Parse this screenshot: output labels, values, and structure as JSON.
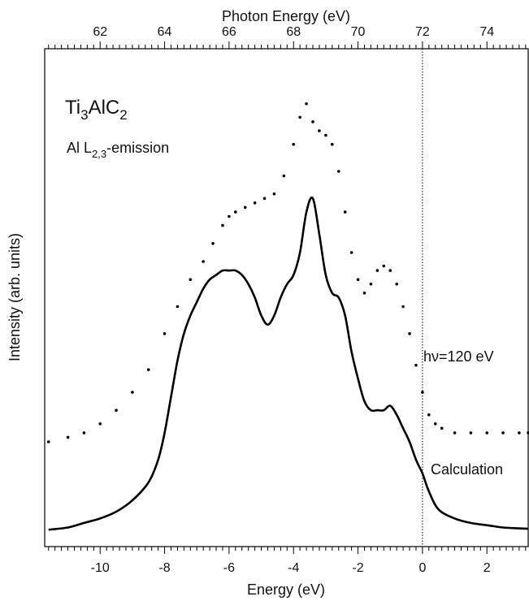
{
  "chart_data": {
    "type": "line",
    "top_axis": {
      "label": "Photon Energy (eV)",
      "range": [
        60.28,
        75.28
      ],
      "ticks": [
        62,
        64,
        66,
        68,
        70,
        72,
        74
      ],
      "tick_labels": [
        "62",
        "64",
        "66",
        "68",
        "70",
        "72",
        "74"
      ]
    },
    "bottom_axis": {
      "label": "Energy (eV)",
      "range": [
        -11.72,
        3.28
      ],
      "ticks": [
        -10,
        -8,
        -6,
        -4,
        -2,
        0,
        2
      ],
      "tick_labels": [
        "-10",
        "-8",
        "-6",
        "-4",
        "-2",
        "0",
        "2"
      ]
    },
    "y_axis": {
      "label": "Intensity (arb. units)",
      "range": [
        0,
        10
      ],
      "tick_labels_shown": false
    },
    "reference_line": {
      "x": 0,
      "style": "dotted"
    },
    "grid": false,
    "series": [
      {
        "name": "hν=120 eV",
        "style": "dots",
        "x": [
          -11.6,
          -11.0,
          -10.5,
          -10.0,
          -9.5,
          -9.0,
          -8.5,
          -8.0,
          -7.6,
          -7.2,
          -6.8,
          -6.5,
          -6.2,
          -6.0,
          -5.8,
          -5.5,
          -5.2,
          -4.9,
          -4.6,
          -4.3,
          -4.0,
          -3.8,
          -3.6,
          -3.4,
          -3.2,
          -3.0,
          -2.8,
          -2.6,
          -2.4,
          -2.2,
          -2.0,
          -1.8,
          -1.6,
          -1.4,
          -1.2,
          -1.0,
          -0.8,
          -0.6,
          -0.4,
          -0.2,
          0.0,
          0.2,
          0.4,
          0.6,
          1.0,
          1.5,
          2.0,
          2.5,
          3.0,
          3.28
        ],
        "y": [
          2.0,
          2.1,
          2.2,
          2.4,
          2.7,
          3.1,
          3.6,
          4.4,
          5.0,
          5.6,
          6.0,
          6.4,
          6.8,
          7.0,
          7.1,
          7.2,
          7.3,
          7.4,
          7.5,
          7.9,
          8.6,
          9.2,
          9.5,
          9.1,
          8.9,
          8.8,
          8.6,
          8.0,
          7.1,
          6.2,
          5.6,
          5.3,
          5.5,
          5.8,
          5.9,
          5.8,
          5.5,
          5.0,
          4.4,
          3.7,
          3.1,
          2.6,
          2.4,
          2.3,
          2.2,
          2.2,
          2.2,
          2.2,
          2.2,
          2.2
        ]
      },
      {
        "name": "Calculation",
        "style": "solid",
        "x": [
          -11.6,
          -11.0,
          -10.5,
          -10.0,
          -9.5,
          -9.0,
          -8.5,
          -8.2,
          -8.0,
          -7.8,
          -7.6,
          -7.4,
          -7.2,
          -7.0,
          -6.8,
          -6.6,
          -6.4,
          -6.2,
          -6.0,
          -5.8,
          -5.6,
          -5.4,
          -5.2,
          -5.0,
          -4.8,
          -4.6,
          -4.4,
          -4.2,
          -4.0,
          -3.8,
          -3.6,
          -3.4,
          -3.2,
          -3.0,
          -2.8,
          -2.6,
          -2.4,
          -2.2,
          -2.0,
          -1.8,
          -1.6,
          -1.4,
          -1.2,
          -1.0,
          -0.8,
          -0.6,
          -0.4,
          -0.2,
          0.0,
          0.2,
          0.5,
          1.0,
          1.5,
          2.0,
          2.5,
          3.0,
          3.28
        ],
        "y": [
          0.05,
          0.1,
          0.2,
          0.3,
          0.45,
          0.7,
          1.1,
          1.6,
          2.2,
          3.0,
          3.8,
          4.4,
          4.8,
          5.1,
          5.4,
          5.6,
          5.7,
          5.8,
          5.8,
          5.8,
          5.7,
          5.5,
          5.2,
          4.8,
          4.6,
          4.8,
          5.2,
          5.5,
          5.7,
          6.2,
          7.1,
          7.4,
          6.6,
          5.7,
          5.3,
          5.2,
          4.8,
          4.0,
          3.4,
          2.9,
          2.7,
          2.7,
          2.7,
          2.8,
          2.6,
          2.3,
          2.0,
          1.6,
          1.3,
          0.9,
          0.5,
          0.3,
          0.2,
          0.15,
          0.1,
          0.08,
          0.07
        ]
      }
    ],
    "annotations": {
      "compound": {
        "base": "Ti",
        "sub1": "3",
        "mid": "AlC",
        "sub2": "2"
      },
      "emission": {
        "base": "Al L",
        "sub": "2,3",
        "tail": "-emission"
      },
      "excitation": "hν=120 eV",
      "calculation": "Calculation"
    }
  }
}
